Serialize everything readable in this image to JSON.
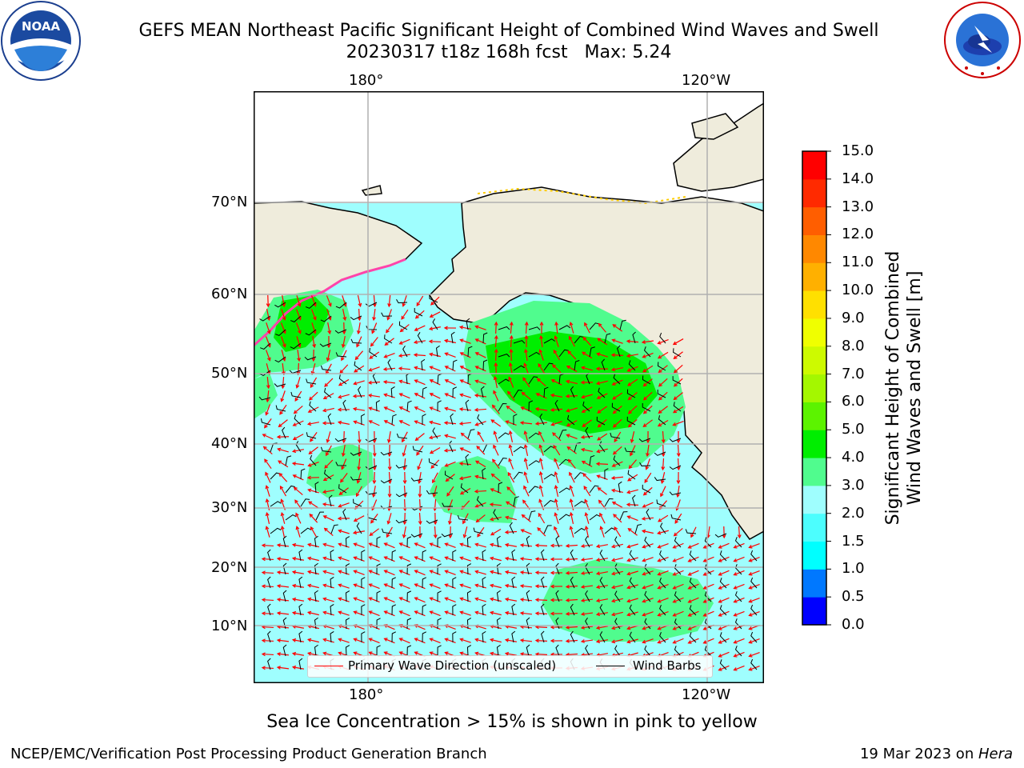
{
  "title": {
    "line1": "GEFS MEAN Northeast Pacific Significant Height of Combined Wind Waves and Swell",
    "line2": "20230317 t18z 168h fcst   Max: 5.24"
  },
  "logos": {
    "left": {
      "text": "NOAA",
      "ring_text": "NATIONAL OCEANIC AND ATMOSPHERIC ADMINISTRATION"
    },
    "right": {
      "ring_text": "NATIONAL WEATHER SERVICE"
    }
  },
  "map": {
    "lon_labels": [
      "180°",
      "120°W"
    ],
    "lat_labels": [
      "70°N",
      "60°N",
      "50°N",
      "40°N",
      "30°N",
      "20°N",
      "10°N"
    ],
    "colors": {
      "land": "#efecdc",
      "ocean_low": "#9ffefe",
      "ocean_mid": "#50fc8e",
      "ocean_high": "#00ee00",
      "wave_arrow": "#ff0000",
      "barb": "#000000",
      "grid": "#b0b0b0"
    }
  },
  "legend": {
    "wave_label": "Primary Wave Direction (unscaled)",
    "barb_label": "Wind Barbs"
  },
  "colorbar": {
    "title_line1": "Significant Height of Combined",
    "title_line2": "Wind Waves and Swell [m]",
    "ticks": [
      "15.0",
      "14.0",
      "13.0",
      "12.0",
      "11.0",
      "10.0",
      "9.0",
      "8.0",
      "7.0",
      "6.0",
      "5.0",
      "4.0",
      "3.0",
      "2.0",
      "1.5",
      "1.0",
      "0.5",
      "0.0"
    ],
    "colors": [
      "#0000ff",
      "#0078ff",
      "#00ffff",
      "#4cfefe",
      "#9ffefe",
      "#50fc8e",
      "#00ee00",
      "#5cf300",
      "#a4f700",
      "#cdfa00",
      "#f0ff00",
      "#ffe000",
      "#ffb000",
      "#ff8800",
      "#ff5e00",
      "#ff2a00",
      "#ff0000"
    ]
  },
  "note": "Sea Ice Concentration > 15% is shown in pink to yellow",
  "footer": {
    "left": "NCEP/EMC/Verification Post Processing Product Generation Branch",
    "date": "19 Mar 2023 on ",
    "machine": "Hera"
  }
}
